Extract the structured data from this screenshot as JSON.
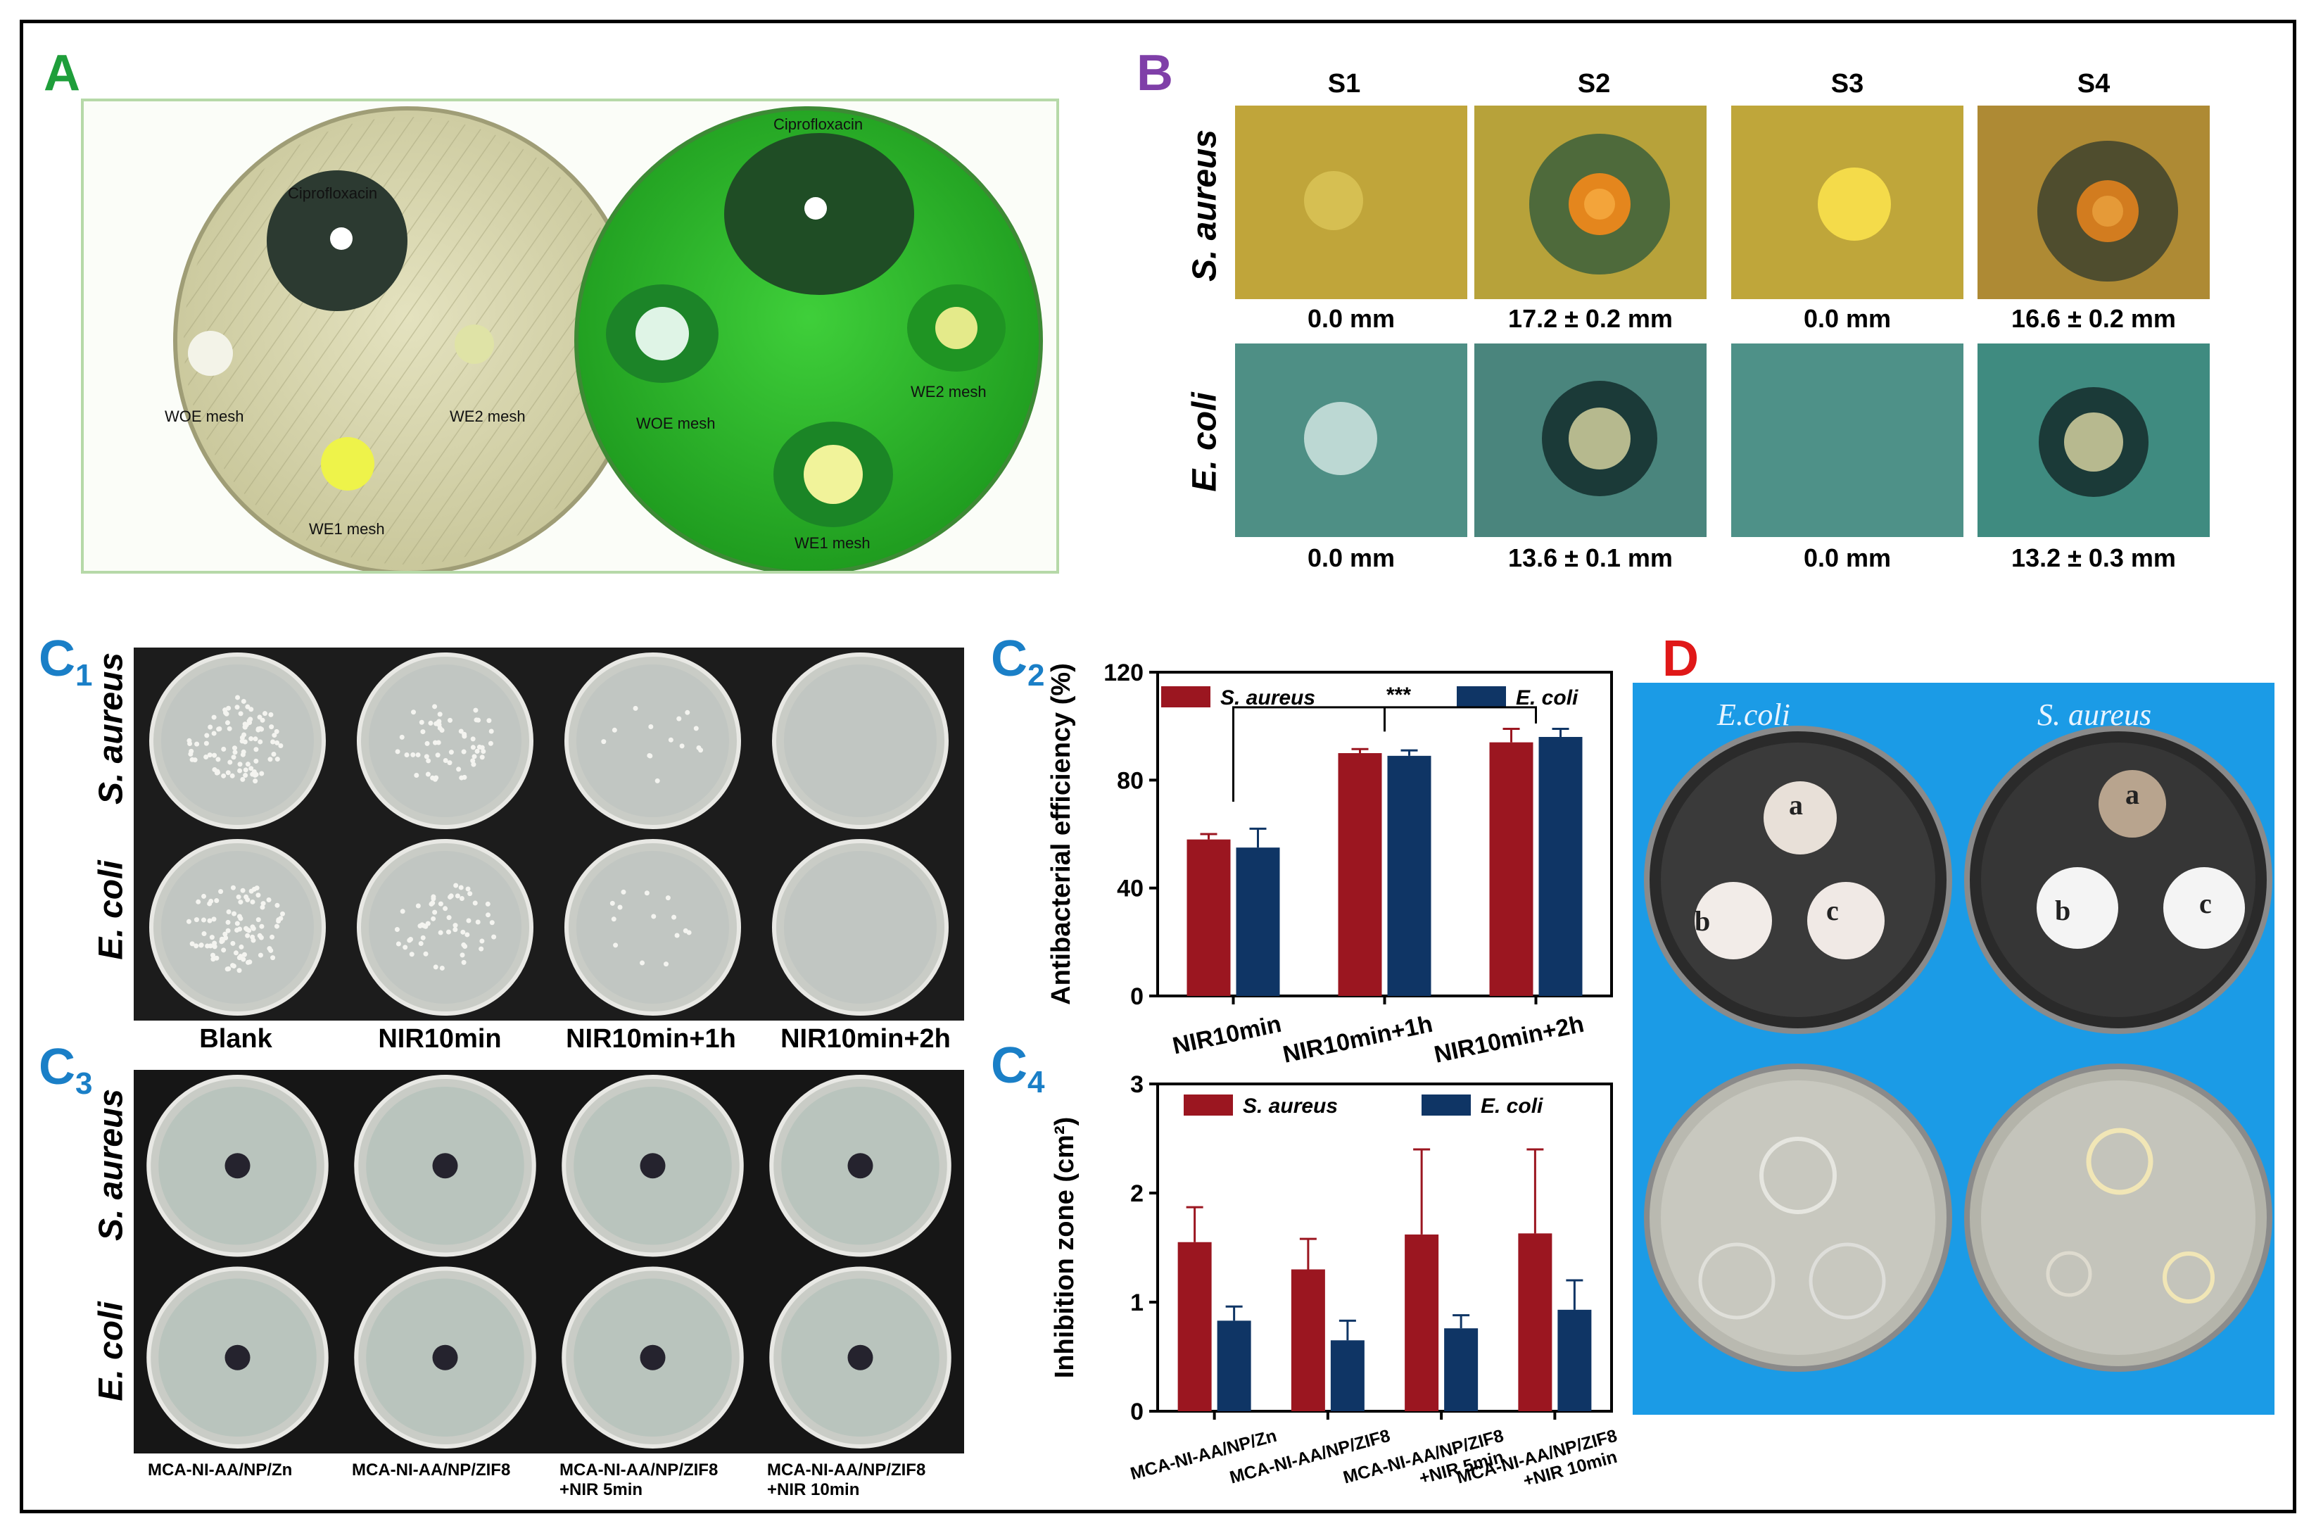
{
  "colors": {
    "a_label": "#1e9e3a",
    "b_label": "#7f3fa8",
    "c_label": "#1a7fc7",
    "d_label": "#e01818",
    "s_aureus_bar": "#9b1620",
    "e_coli_bar": "#0f3565",
    "d_background": "#1b9be6"
  },
  "panel_a": {
    "label": "A",
    "plate_left": {
      "center": "Ciprofloxacin",
      "left": "WOE mesh",
      "right": "WE2 mesh",
      "bottom": "WE1 mesh"
    },
    "plate_right": {
      "center": "Ciprofloxacin",
      "left": "WOE mesh",
      "right": "WE2 mesh",
      "bottom": "WE1 mesh"
    }
  },
  "panel_b": {
    "label": "B",
    "columns": [
      "S1",
      "S2",
      "S3",
      "S4"
    ],
    "rows": [
      {
        "organism": "S. aureus",
        "values": [
          "0.0 mm",
          "17.2 ± 0.2 mm",
          "0.0 mm",
          "16.6 ± 0.2 mm"
        ]
      },
      {
        "organism": "E. coli",
        "values": [
          "0.0 mm",
          "13.6 ± 0.1 mm",
          "0.0 mm",
          "13.2 ± 0.3 mm"
        ]
      }
    ]
  },
  "panel_c1": {
    "label": "C",
    "label_sub": "1",
    "rows": [
      "S. aureus",
      "E. coli"
    ],
    "columns": [
      "Blank",
      "NIR10min",
      "NIR10min+1h",
      "NIR10min+2h"
    ]
  },
  "panel_c3": {
    "label": "C",
    "label_sub": "3",
    "rows": [
      "S. aureus",
      "E. coli"
    ],
    "columns": [
      {
        "line1": "MCA-NI-AA/NP/Zn",
        "line2": ""
      },
      {
        "line1": "MCA-NI-AA/NP/ZIF8",
        "line2": ""
      },
      {
        "line1": "MCA-NI-AA/NP/ZIF8",
        "line2": "+NIR 5min"
      },
      {
        "line1": "MCA-NI-AA/NP/ZIF8",
        "line2": "+NIR 10min"
      }
    ]
  },
  "panel_d": {
    "label": "D",
    "left_title": "E.coli",
    "right_title": "S. aureus",
    "disc_labels": [
      "a",
      "b",
      "c"
    ]
  },
  "chart_data": [
    {
      "id": "C2",
      "label": "C",
      "label_sub": "2",
      "type": "bar",
      "categories": [
        "NIR10min",
        "NIR10min+1h",
        "NIR10min+2h"
      ],
      "series": [
        {
          "name": "S. aureus",
          "values": [
            58,
            90,
            94
          ],
          "errors": [
            2,
            1.5,
            5
          ],
          "color": "#9b1620"
        },
        {
          "name": "E. coli",
          "values": [
            55,
            89,
            96
          ],
          "errors": [
            7,
            2,
            3
          ],
          "color": "#0f3565"
        }
      ],
      "ylabel": "Antibacterial efficiency (%)",
      "ylim": [
        0,
        120
      ],
      "yticks": [
        0,
        40,
        80,
        120
      ],
      "significance": "***",
      "legend": "top"
    },
    {
      "id": "C4",
      "label": "C",
      "label_sub": "4",
      "type": "bar",
      "categories": [
        "MCA-NI-AA/NP/Zn",
        "MCA-NI-AA/NP/ZIF8",
        "MCA-NI-AA/NP/ZIF8\n+NIR 5min",
        "MCA-NI-AA/NP/ZIF8\n+NIR 10min"
      ],
      "category_lines": [
        [
          "MCA-NI-AA/NP/Zn"
        ],
        [
          "MCA-NI-AA/NP/ZIF8"
        ],
        [
          "MCA-NI-AA/NP/ZIF8",
          "+NIR 5min"
        ],
        [
          "MCA-NI-AA/NP/ZIF8",
          "+NIR 10min"
        ]
      ],
      "series": [
        {
          "name": "S. aureus",
          "values": [
            1.55,
            1.3,
            1.62,
            1.63
          ],
          "errors": [
            0.32,
            0.28,
            0.78,
            0.77
          ],
          "color": "#9b1620"
        },
        {
          "name": "E. coli",
          "values": [
            0.83,
            0.65,
            0.76,
            0.93
          ],
          "errors": [
            0.13,
            0.18,
            0.12,
            0.27
          ],
          "color": "#0f3565"
        }
      ],
      "ylabel": "Inhibition zone (cm²)",
      "ylim": [
        0,
        3
      ],
      "yticks": [
        0,
        1,
        2,
        3
      ],
      "legend": "top"
    }
  ]
}
